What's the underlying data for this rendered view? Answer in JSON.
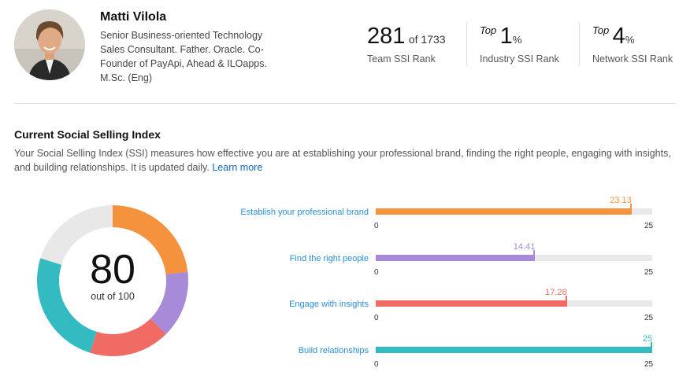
{
  "profile": {
    "name": "Matti Vilola",
    "headline": "Senior Business-oriented Technology Sales Consultant. Father. Oracle. Co-Founder of PayApi, Ahead & ILOapps. M.Sc. (Eng)"
  },
  "ranks": {
    "team": {
      "value": "281",
      "of_text": "of 1733",
      "label": "Team SSI Rank"
    },
    "industry": {
      "prefix": "Top",
      "value": "1",
      "unit": "%",
      "label": "Industry SSI Rank"
    },
    "network": {
      "prefix": "Top",
      "value": "4",
      "unit": "%",
      "label": "Network SSI Rank"
    }
  },
  "ssi": {
    "title": "Current Social Selling Index",
    "description": "Your Social Selling Index (SSI) measures how effective you are at establishing your professional brand, finding the right people, engaging with insights, and building relationships. It is updated daily.",
    "learn_more": "Learn more",
    "score": "80",
    "score_sub": "out of 100",
    "remainder_color": "#e8e8e8",
    "components": [
      {
        "label": "Establish your professional brand",
        "value": 23.13,
        "value_text": "23.13",
        "min": "0",
        "max": "25",
        "color": "#f5923e"
      },
      {
        "label": "Find the right people",
        "value": 14.41,
        "value_text": "14.41",
        "min": "0",
        "max": "25",
        "color": "#a78bd8"
      },
      {
        "label": "Engage with insights",
        "value": 17.28,
        "value_text": "17.28",
        "min": "0",
        "max": "25",
        "color": "#f06b63"
      },
      {
        "label": "Build relationships",
        "value": 25,
        "value_text": "25",
        "min": "0",
        "max": "25",
        "color": "#34bbc2"
      }
    ]
  }
}
